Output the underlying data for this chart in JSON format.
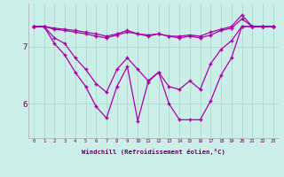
{
  "xlabel": "Windchill (Refroidissement éolien,°C)",
  "x": [
    0,
    1,
    2,
    3,
    4,
    5,
    6,
    7,
    8,
    9,
    10,
    11,
    12,
    13,
    14,
    15,
    16,
    17,
    18,
    19,
    20,
    21,
    22,
    23
  ],
  "line1": [
    7.35,
    7.35,
    7.3,
    7.28,
    7.25,
    7.22,
    7.18,
    7.15,
    7.2,
    7.25,
    7.22,
    7.2,
    7.22,
    7.18,
    7.18,
    7.2,
    7.18,
    7.25,
    7.3,
    7.35,
    7.55,
    7.35,
    7.35,
    7.35
  ],
  "line2": [
    7.35,
    7.35,
    7.32,
    7.3,
    7.28,
    7.25,
    7.22,
    7.18,
    7.22,
    7.28,
    7.22,
    7.18,
    7.22,
    7.18,
    7.15,
    7.18,
    7.15,
    7.2,
    7.28,
    7.32,
    7.48,
    7.35,
    7.35,
    7.35
  ],
  "line3": [
    7.35,
    7.35,
    7.15,
    7.05,
    6.8,
    6.6,
    6.35,
    6.2,
    6.6,
    6.8,
    6.6,
    6.4,
    6.55,
    6.3,
    6.25,
    6.4,
    6.25,
    6.7,
    6.95,
    7.1,
    7.35,
    7.35,
    7.35,
    7.35
  ],
  "line4": [
    7.35,
    7.35,
    7.05,
    6.85,
    6.55,
    6.3,
    5.95,
    5.75,
    6.3,
    6.65,
    5.7,
    6.38,
    6.55,
    6.0,
    5.72,
    5.72,
    5.72,
    6.05,
    6.5,
    6.8,
    7.35,
    7.35,
    7.35,
    7.35
  ],
  "line_color": "#aa00aa",
  "bg_color": "#cceee8",
  "grid_color": "#aaddcc",
  "yticks": [
    6,
    7
  ],
  "ylim": [
    5.4,
    7.75
  ],
  "xlim": [
    -0.5,
    23.5
  ]
}
